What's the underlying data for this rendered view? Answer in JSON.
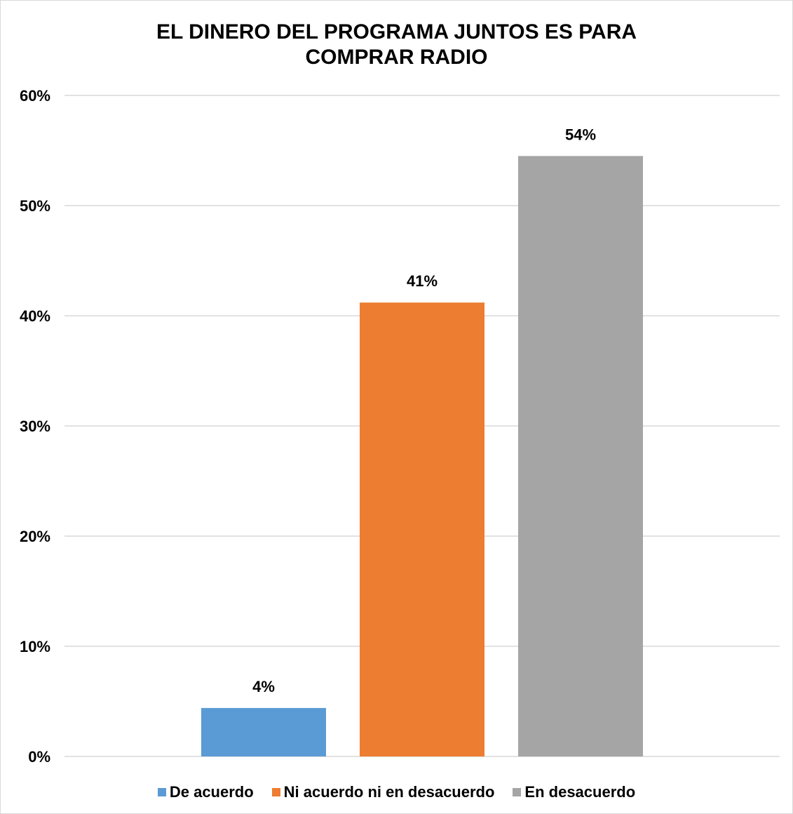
{
  "chart_data": {
    "type": "bar",
    "title": [
      "EL DINERO DEL PROGRAMA JUNTOS ES PARA",
      "COMPRAR RADIO"
    ],
    "categories": [
      "De acuerdo",
      "Ni acuerdo ni en desacuerdo",
      "En desacuerdo"
    ],
    "values": [
      4.4,
      41.2,
      54.5
    ],
    "data_labels": [
      "4%",
      "41%",
      "54%"
    ],
    "colors": [
      "#5b9bd5",
      "#ed7d31",
      "#a5a5a5"
    ],
    "y_ticks": [
      0,
      10,
      20,
      30,
      40,
      50,
      60
    ],
    "y_tick_labels": [
      "0%",
      "10%",
      "20%",
      "30%",
      "40%",
      "50%",
      "60%"
    ],
    "ylim": [
      0,
      60
    ],
    "grid": true,
    "legend_position": "bottom",
    "xlabel": "",
    "ylabel": ""
  }
}
